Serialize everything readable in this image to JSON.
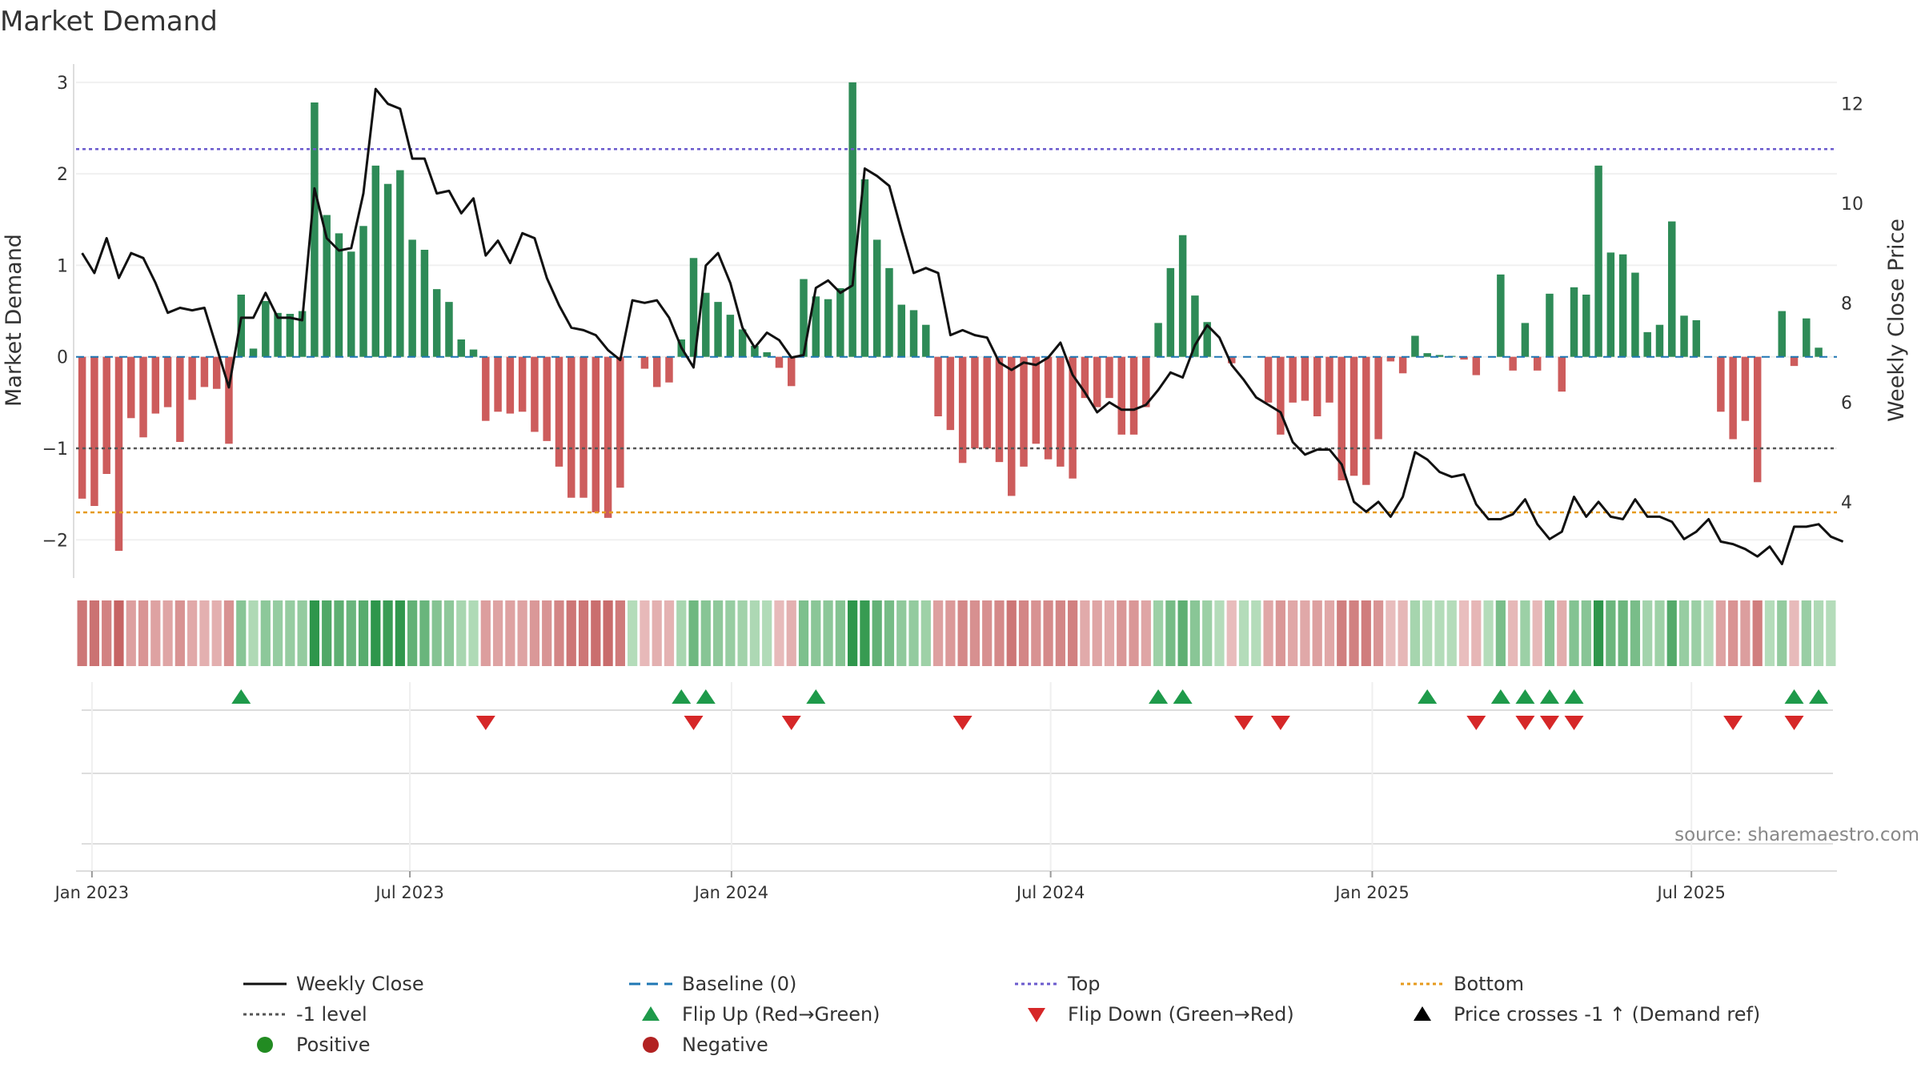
{
  "chart_data": {
    "type": "bar+line",
    "title": "Market Demand",
    "ylabel_left": "Market Demand",
    "ylabel_right": "Weekly Close Price",
    "ylim_left": [
      -2.4,
      3.2
    ],
    "yticks_left": [
      "3",
      "2",
      "1",
      "0",
      "−1",
      "−2"
    ],
    "ylim_right": [
      2.5,
      12.8
    ],
    "yticks_right": [
      "12",
      "10",
      "8",
      "6",
      "4"
    ],
    "xticks": [
      "Jan 2023",
      "Jul 2023",
      "Jan 2024",
      "Jul 2024",
      "Jan 2025",
      "Jul 2025"
    ],
    "source": "source: sharemaestro.com",
    "reference_lines": {
      "top": 2.27,
      "minus_one": -1.0,
      "bottom": -1.7,
      "baseline": 0
    },
    "demand": [
      -1.55,
      -1.63,
      -1.28,
      -2.12,
      -0.67,
      -0.88,
      -0.62,
      -0.55,
      -0.93,
      -0.47,
      -0.33,
      -0.35,
      -0.95,
      0.68,
      0.09,
      0.61,
      0.48,
      0.47,
      0.5,
      2.78,
      1.55,
      1.35,
      1.15,
      1.43,
      2.09,
      1.89,
      2.04,
      1.28,
      1.17,
      0.74,
      0.6,
      0.19,
      0.08,
      -0.7,
      -0.6,
      -0.62,
      -0.6,
      -0.82,
      -0.92,
      -1.2,
      -1.54,
      -1.54,
      -1.7,
      -1.76,
      -1.43,
      0,
      -0.13,
      -0.33,
      -0.28,
      0.19,
      1.08,
      0.7,
      0.6,
      0.46,
      0.3,
      0.12,
      0.05,
      -0.12,
      -0.32,
      0.85,
      0.66,
      0.63,
      0.75,
      3.0,
      1.94,
      1.28,
      0.97,
      0.57,
      0.51,
      0.35,
      -0.65,
      -0.8,
      -1.16,
      -1.0,
      -1.0,
      -1.15,
      -1.52,
      -1.2,
      -0.95,
      -1.12,
      -1.2,
      -1.33,
      -0.45,
      -0.55,
      -0.45,
      -0.85,
      -0.85,
      -0.55,
      0.37,
      0.97,
      1.33,
      0.67,
      0.38,
      0,
      -0.07,
      0,
      0,
      -0.5,
      -0.85,
      -0.5,
      -0.48,
      -0.65,
      -0.5,
      -1.35,
      -1.3,
      -1.4,
      -0.9,
      -0.05,
      -0.18,
      0.23,
      0.04,
      0.02,
      0.01,
      -0.03,
      -0.2,
      0,
      0.9,
      -0.15,
      0.37,
      -0.15,
      0.69,
      -0.38,
      0.76,
      0.68,
      2.09,
      1.14,
      1.12,
      0.92,
      0.27,
      0.35,
      1.48,
      0.45,
      0.4,
      0,
      -0.6,
      -0.9,
      -0.7,
      -1.37,
      0,
      0.5,
      -0.1,
      0.42,
      0.1,
      0
    ],
    "price": [
      9.0,
      8.6,
      9.3,
      8.5,
      9.0,
      8.9,
      8.4,
      7.8,
      7.9,
      7.85,
      7.9,
      7.1,
      6.3,
      7.7,
      7.7,
      8.2,
      7.7,
      7.7,
      7.65,
      10.3,
      9.3,
      9.05,
      9.1,
      10.2,
      12.3,
      12.0,
      11.9,
      10.9,
      10.9,
      10.2,
      10.25,
      9.8,
      10.1,
      8.95,
      9.25,
      8.8,
      9.4,
      9.3,
      8.5,
      7.95,
      7.5,
      7.45,
      7.35,
      7.05,
      6.85,
      8.05,
      8.0,
      8.05,
      7.7,
      7.1,
      6.7,
      8.75,
      9.0,
      8.4,
      7.5,
      7.1,
      7.4,
      7.25,
      6.9,
      6.95,
      8.3,
      8.45,
      8.2,
      8.35,
      10.7,
      10.55,
      10.35,
      9.45,
      8.6,
      8.7,
      8.6,
      7.35,
      7.45,
      7.35,
      7.3,
      6.8,
      6.65,
      6.8,
      6.75,
      6.9,
      7.2,
      6.55,
      6.2,
      5.8,
      6.0,
      5.85,
      5.85,
      5.95,
      6.25,
      6.6,
      6.5,
      7.15,
      7.55,
      7.3,
      6.75,
      6.45,
      6.1,
      5.95,
      5.8,
      5.2,
      4.95,
      5.05,
      5.05,
      4.75,
      4.0,
      3.8,
      4.0,
      3.7,
      4.1,
      5.0,
      4.85,
      4.6,
      4.5,
      4.55,
      3.95,
      3.65,
      3.65,
      3.75,
      4.05,
      3.55,
      3.25,
      3.4,
      4.1,
      3.7,
      4.0,
      3.7,
      3.65,
      4.05,
      3.7,
      3.7,
      3.6,
      3.25,
      3.4,
      3.65,
      3.2,
      3.15,
      3.05,
      2.9,
      3.1,
      2.75,
      3.5,
      3.5,
      3.55,
      3.3,
      3.2
    ],
    "flip_up_weeks": [
      13,
      49,
      51,
      60,
      88,
      90,
      110,
      116,
      118,
      120,
      122,
      140,
      142
    ],
    "flip_down_weeks": [
      33,
      50,
      58,
      72,
      95,
      98,
      114,
      118,
      120,
      122,
      135,
      140
    ],
    "legend": [
      {
        "label": "Weekly Close",
        "key": "line-solid",
        "color": "#111111"
      },
      {
        "label": "Baseline (0)",
        "key": "line-dashed",
        "color": "#1f77b4"
      },
      {
        "label": "Top",
        "key": "line-dotted",
        "color": "#6a5acd"
      },
      {
        "label": "Bottom",
        "key": "line-dotted",
        "color": "#e69a1c"
      },
      {
        "label": "-1 level",
        "key": "line-dotted",
        "color": "#555555"
      },
      {
        "label": "Flip Up (Red→Green)",
        "key": "triangle-up",
        "color": "#1e9a4a"
      },
      {
        "label": "Flip Down (Green→Red)",
        "key": "triangle-down",
        "color": "#d62728"
      },
      {
        "label": "Price crosses -1 ↑ (Demand ref)",
        "key": "triangle-up",
        "color": "#000000"
      },
      {
        "label": "Positive",
        "key": "dot",
        "color": "#228b22"
      },
      {
        "label": "Negative",
        "key": "dot",
        "color": "#b22222"
      }
    ],
    "colors": {
      "positive": "#2e8b57",
      "negative": "#cd5c5c",
      "price": "#111111",
      "baseline": "#1f77b4",
      "top": "#6a5acd",
      "bottom": "#e69a1c",
      "minus_one": "#555555",
      "flip_up": "#1e9a4a",
      "flip_down": "#d62728"
    }
  }
}
